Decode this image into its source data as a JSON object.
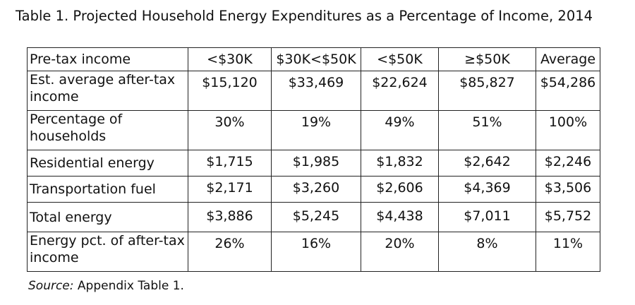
{
  "title": "Table 1. Projected Household Energy Expenditures as a Percentage of Income, 2014",
  "table": {
    "header": {
      "label": "Pre-tax income",
      "columns": [
        "<$30K",
        "$30K<$50K",
        "<$50K",
        "≥$50K",
        "Average"
      ]
    },
    "rows": [
      {
        "label": "Est. average after-tax income",
        "values": [
          "$15,120",
          "$33,469",
          "$22,624",
          "$85,827",
          "$54,286"
        ]
      },
      {
        "label": "Percentage of households",
        "values": [
          "30%",
          "19%",
          "49%",
          "51%",
          "100%"
        ]
      },
      {
        "label": "Residential energy",
        "values": [
          "$1,715",
          "$1,985",
          "$1,832",
          "$2,642",
          "$2,246"
        ]
      },
      {
        "label": "Transportation fuel",
        "values": [
          "$2,171",
          "$3,260",
          "$2,606",
          "$4,369",
          "$3,506"
        ]
      },
      {
        "label": "Total energy",
        "values": [
          "$3,886",
          "$5,245",
          "$4,438",
          "$7,011",
          "$5,752"
        ]
      },
      {
        "label": "Energy pct. of after-tax income",
        "values": [
          "26%",
          "16%",
          "20%",
          "8%",
          "11%"
        ]
      }
    ]
  },
  "source": {
    "label": "Source:",
    "text": " Appendix Table 1."
  }
}
